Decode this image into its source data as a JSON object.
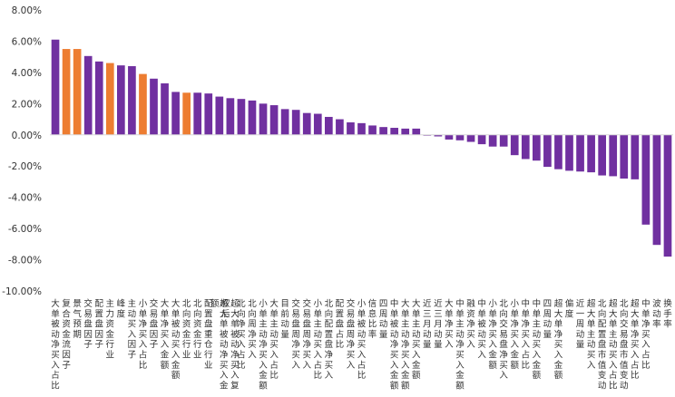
{
  "chart_data": {
    "type": "bar",
    "title": "",
    "xlabel": "",
    "ylabel": "",
    "ylim": [
      -10,
      8
    ],
    "yticks": [
      8,
      6,
      4,
      2,
      0,
      -2,
      -4,
      -6,
      -8,
      -10
    ],
    "ytick_labels": [
      "8.00%",
      "6.00%",
      "4.00%",
      "2.00%",
      "0.00%",
      "-2.00%",
      "-4.00%",
      "-6.00%",
      "-8.00%",
      "-10.00%"
    ],
    "grid": false,
    "legend": "none",
    "colors": {
      "default": "#7030A0",
      "highlight": "#ED7D31"
    },
    "categories": [
      "大单被动净买入占比",
      "复合资金流因子",
      "景气预期",
      "交易盘因子",
      "配置盘因子",
      "主力资金行业",
      "峰度",
      "主动买入因子",
      "小单净买入占比",
      "交易盘因子",
      "大单净买入金额",
      "大单被动买入金额",
      "北向资金行业",
      "北向资金行业",
      "配置盘重仓行业",
      "超大单被动净买入金额",
      "超大单被动净买入复权后",
      "北向净买入占比",
      "北向周净买入",
      "小单主动净买入金额",
      "大单主动买入占比",
      "目前动量",
      "交易盘周净买入",
      "交易盘周净买入",
      "小单主动买入占比",
      "北向配置盘净买入",
      "配置盘占比",
      "交易盘周净买入",
      "小单被动买入占比",
      "信息比率",
      "四周动量",
      "中单被动净买入金额",
      "大单主动净买入金额",
      "大单主动买入金额",
      "近三月动量",
      "近三月动量",
      "大单净买入",
      "中单主动净买入金额",
      "融资净买入",
      "中单被动买入",
      "小单净买入金额",
      "北向交易盘净买入",
      "小单净买入金额",
      "中单净买入占比",
      "中单主动买入金额",
      "四周动量",
      "超大单净买入金额",
      "偏度",
      "近一周动量",
      "超大单主动买入",
      "北向配置盘市值变动",
      "超大单主动买入占比",
      "北向交易盘市值变动",
      "超大单净买入占比",
      "中单净买入占比",
      "波动率",
      "换手率"
    ],
    "values": [
      6.1,
      5.5,
      5.5,
      5.05,
      4.7,
      4.6,
      4.45,
      4.4,
      3.9,
      3.6,
      3.3,
      2.75,
      2.7,
      2.7,
      2.65,
      2.45,
      2.35,
      2.3,
      2.2,
      2.0,
      1.9,
      1.65,
      1.6,
      1.4,
      1.35,
      1.15,
      1.0,
      0.8,
      0.75,
      0.6,
      0.5,
      0.45,
      0.4,
      0.4,
      -0.05,
      -0.1,
      -0.3,
      -0.35,
      -0.45,
      -0.6,
      -0.75,
      -0.75,
      -1.3,
      -1.55,
      -1.65,
      -2.05,
      -2.2,
      -2.3,
      -2.35,
      -2.4,
      -2.6,
      -2.65,
      -2.8,
      -2.85,
      -5.75,
      -7.05,
      -7.8
    ],
    "highlight_indices": [
      1,
      2,
      5,
      8,
      12
    ]
  }
}
